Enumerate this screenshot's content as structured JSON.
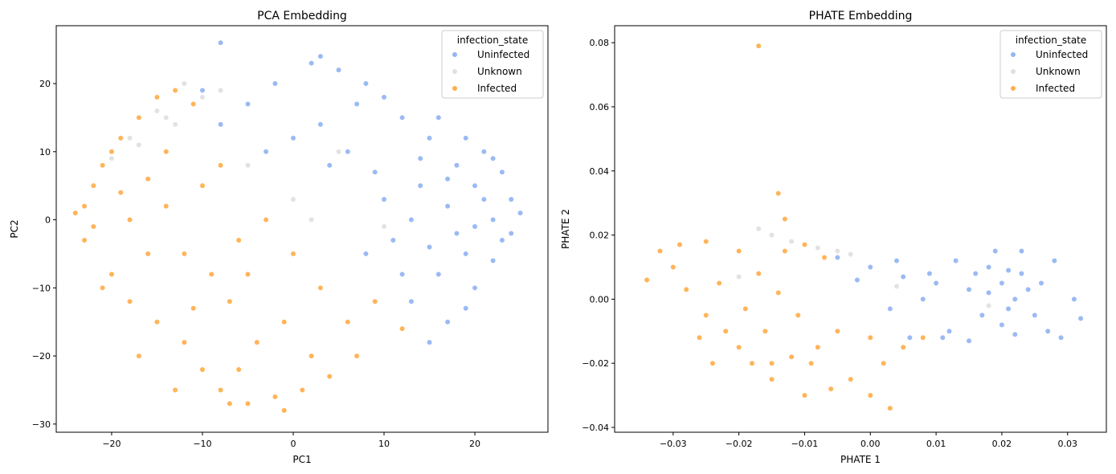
{
  "legend_colors": {
    "Uninfected": "#6495ED",
    "Unknown": "#D3D3D3",
    "Infected": "#FF8C00"
  },
  "chart_data": [
    {
      "type": "scatter",
      "title": "PCA Embedding",
      "xlabel": "PC1",
      "ylabel": "PC2",
      "xlim": [
        -26.1,
        28.05
      ],
      "ylim": [
        -31.2,
        28.5
      ],
      "xticks": [
        -20,
        -10,
        0,
        10,
        20
      ],
      "yticks": [
        -30,
        -20,
        -10,
        0,
        10,
        20
      ],
      "grid": false,
      "legend": {
        "title": "infection_state",
        "placement": "top-right",
        "entries": [
          "Uninfected",
          "Unknown",
          "Infected"
        ]
      },
      "series": [
        {
          "name": "Uninfected",
          "color": "#6495ED",
          "points": [
            [
              20,
              5
            ],
            [
              22,
              0
            ],
            [
              18,
              8
            ],
            [
              15,
              12
            ],
            [
              23,
              -3
            ],
            [
              19,
              -5
            ],
            [
              17,
              2
            ],
            [
              21,
              10
            ],
            [
              24,
              3
            ],
            [
              16,
              -8
            ],
            [
              14,
              5
            ],
            [
              12,
              15
            ],
            [
              10,
              18
            ],
            [
              8,
              20
            ],
            [
              5,
              22
            ],
            [
              2,
              23
            ],
            [
              -2,
              20
            ],
            [
              -5,
              17
            ],
            [
              -8,
              14
            ],
            [
              -10,
              19
            ],
            [
              3,
              14
            ],
            [
              6,
              10
            ],
            [
              9,
              7
            ],
            [
              11,
              -3
            ],
            [
              13,
              -12
            ],
            [
              17,
              -15
            ],
            [
              20,
              -10
            ],
            [
              22,
              -6
            ],
            [
              25,
              1
            ],
            [
              23,
              7
            ],
            [
              19,
              12
            ],
            [
              16,
              15
            ],
            [
              13,
              0
            ],
            [
              15,
              -4
            ],
            [
              18,
              -2
            ],
            [
              21,
              3
            ],
            [
              20,
              -1
            ],
            [
              17,
              6
            ],
            [
              14,
              9
            ],
            [
              12,
              -8
            ],
            [
              8,
              -5
            ],
            [
              4,
              8
            ],
            [
              0,
              12
            ],
            [
              -3,
              10
            ],
            [
              7,
              17
            ],
            [
              10,
              3
            ],
            [
              22,
              9
            ],
            [
              24,
              -2
            ],
            [
              19,
              -13
            ],
            [
              15,
              -18
            ],
            [
              -8,
              26
            ],
            [
              3,
              24
            ]
          ]
        },
        {
          "name": "Unknown",
          "color": "#D3D3D3",
          "points": [
            [
              -18,
              12
            ],
            [
              -15,
              16
            ],
            [
              -12,
              20
            ],
            [
              -10,
              18
            ],
            [
              -8,
              19
            ],
            [
              -17,
              11
            ],
            [
              -14,
              15
            ],
            [
              0,
              3
            ],
            [
              2,
              0
            ],
            [
              5,
              10
            ],
            [
              -5,
              8
            ],
            [
              10,
              -1
            ],
            [
              -20,
              9
            ],
            [
              -13,
              14
            ]
          ]
        },
        {
          "name": "Infected",
          "color": "#FF8C00",
          "points": [
            [
              -22,
              5
            ],
            [
              -21,
              8
            ],
            [
              -23,
              2
            ],
            [
              -20,
              10
            ],
            [
              -22,
              -1
            ],
            [
              -19,
              12
            ],
            [
              -17,
              15
            ],
            [
              -15,
              18
            ],
            [
              -13,
              19
            ],
            [
              -11,
              17
            ],
            [
              -18,
              0
            ],
            [
              -16,
              -5
            ],
            [
              -20,
              -8
            ],
            [
              -18,
              -12
            ],
            [
              -15,
              -15
            ],
            [
              -12,
              -18
            ],
            [
              -10,
              -22
            ],
            [
              -8,
              -25
            ],
            [
              -5,
              -27
            ],
            [
              -2,
              -26
            ],
            [
              1,
              -25
            ],
            [
              4,
              -23
            ],
            [
              7,
              -20
            ],
            [
              6,
              -15
            ],
            [
              3,
              -10
            ],
            [
              0,
              -5
            ],
            [
              -3,
              0
            ],
            [
              -6,
              -3
            ],
            [
              -9,
              -8
            ],
            [
              -12,
              -5
            ],
            [
              -14,
              2
            ],
            [
              -10,
              5
            ],
            [
              -7,
              -12
            ],
            [
              -4,
              -18
            ],
            [
              -1,
              -15
            ],
            [
              2,
              -20
            ],
            [
              -13,
              -25
            ],
            [
              -17,
              -20
            ],
            [
              -21,
              -10
            ],
            [
              -23,
              -3
            ],
            [
              -8,
              8
            ],
            [
              -5,
              -8
            ],
            [
              9,
              -12
            ],
            [
              12,
              -16
            ],
            [
              -14,
              10
            ],
            [
              -16,
              6
            ],
            [
              -19,
              4
            ],
            [
              -24,
              1
            ],
            [
              -11,
              -13
            ],
            [
              -6,
              -22
            ],
            [
              -1,
              -28
            ],
            [
              -7,
              -27
            ]
          ]
        }
      ]
    },
    {
      "type": "scatter",
      "title": "PHATE Embedding",
      "xlabel": "PHATE 1",
      "ylabel": "PHATE 2",
      "xlim": [
        -0.0389,
        0.0359
      ],
      "ylim": [
        -0.0415,
        0.0853
      ],
      "xticks": [
        -0.03,
        -0.02,
        -0.01,
        0.0,
        0.01,
        0.02,
        0.03
      ],
      "xticklabels": [
        "−0.03",
        "−0.02",
        "−0.01",
        "0.00",
        "0.01",
        "0.02",
        "0.03"
      ],
      "yticks": [
        -0.04,
        -0.02,
        0.0,
        0.02,
        0.04,
        0.06,
        0.08
      ],
      "yticklabels": [
        "−0.04",
        "−0.02",
        "0.00",
        "0.02",
        "0.04",
        "0.06",
        "0.08"
      ],
      "grid": false,
      "legend": {
        "title": "infection_state",
        "placement": "top-right",
        "entries": [
          "Uninfected",
          "Unknown",
          "Infected"
        ]
      },
      "series": [
        {
          "name": "Uninfected",
          "color": "#6495ED",
          "points": [
            [
              0.02,
              0.005
            ],
            [
              0.022,
              0
            ],
            [
              0.025,
              -0.005
            ],
            [
              0.018,
              0.01
            ],
            [
              0.015,
              0.003
            ],
            [
              0.01,
              0.005
            ],
            [
              0.005,
              0.007
            ],
            [
              0.0,
              0.01
            ],
            [
              -0.005,
              0.013
            ],
            [
              0.012,
              -0.01
            ],
            [
              0.015,
              -0.013
            ],
            [
              0.02,
              -0.008
            ],
            [
              0.023,
              0.015
            ],
            [
              0.028,
              0.012
            ],
            [
              0.031,
              0.0
            ],
            [
              0.032,
              -0.006
            ],
            [
              0.027,
              -0.01
            ],
            [
              0.019,
              0.015
            ],
            [
              0.016,
              0.008
            ],
            [
              0.008,
              0.0
            ],
            [
              0.003,
              -0.003
            ],
            [
              0.006,
              -0.012
            ],
            [
              0.011,
              -0.012
            ],
            [
              0.021,
              -0.003
            ],
            [
              0.024,
              0.003
            ],
            [
              0.021,
              0.009
            ],
            [
              0.026,
              0.005
            ],
            [
              0.017,
              -0.005
            ],
            [
              0.013,
              0.012
            ],
            [
              -0.002,
              0.006
            ],
            [
              0.004,
              0.012
            ],
            [
              0.009,
              0.008
            ],
            [
              0.022,
              -0.011
            ],
            [
              0.029,
              -0.012
            ],
            [
              0.018,
              0.002
            ],
            [
              0.023,
              0.008
            ]
          ]
        },
        {
          "name": "Unknown",
          "color": "#D3D3D3",
          "points": [
            [
              -0.017,
              0.022
            ],
            [
              -0.015,
              0.02
            ],
            [
              -0.012,
              0.018
            ],
            [
              -0.008,
              0.016
            ],
            [
              -0.005,
              0.015
            ],
            [
              -0.003,
              0.014
            ],
            [
              0.004,
              0.004
            ],
            [
              0.018,
              -0.002
            ],
            [
              -0.02,
              0.007
            ]
          ]
        },
        {
          "name": "Infected",
          "color": "#FF8C00",
          "points": [
            [
              -0.034,
              0.006
            ],
            [
              -0.032,
              0.015
            ],
            [
              -0.03,
              0.01
            ],
            [
              -0.028,
              0.003
            ],
            [
              -0.025,
              -0.005
            ],
            [
              -0.022,
              -0.01
            ],
            [
              -0.02,
              -0.015
            ],
            [
              -0.018,
              -0.02
            ],
            [
              -0.015,
              -0.025
            ],
            [
              -0.012,
              -0.018
            ],
            [
              -0.01,
              -0.03
            ],
            [
              -0.006,
              -0.028
            ],
            [
              -0.003,
              -0.025
            ],
            [
              0.0,
              -0.03
            ],
            [
              0.003,
              -0.034
            ],
            [
              0.002,
              -0.02
            ],
            [
              0.005,
              -0.015
            ],
            [
              0.008,
              -0.012
            ],
            [
              0.0,
              -0.012
            ],
            [
              -0.005,
              -0.01
            ],
            [
              -0.008,
              -0.015
            ],
            [
              -0.011,
              -0.005
            ],
            [
              -0.014,
              0.002
            ],
            [
              -0.017,
              0.008
            ],
            [
              -0.02,
              0.015
            ],
            [
              -0.025,
              0.018
            ],
            [
              -0.029,
              0.017
            ],
            [
              -0.023,
              0.005
            ],
            [
              -0.019,
              -0.003
            ],
            [
              -0.016,
              -0.01
            ],
            [
              -0.013,
              0.015
            ],
            [
              -0.01,
              0.017
            ],
            [
              -0.007,
              0.013
            ],
            [
              -0.024,
              -0.02
            ],
            [
              -0.026,
              -0.012
            ],
            [
              -0.017,
              0.079
            ],
            [
              -0.014,
              0.033
            ],
            [
              -0.013,
              0.025
            ],
            [
              -0.015,
              -0.02
            ],
            [
              -0.009,
              -0.02
            ]
          ]
        }
      ]
    }
  ]
}
